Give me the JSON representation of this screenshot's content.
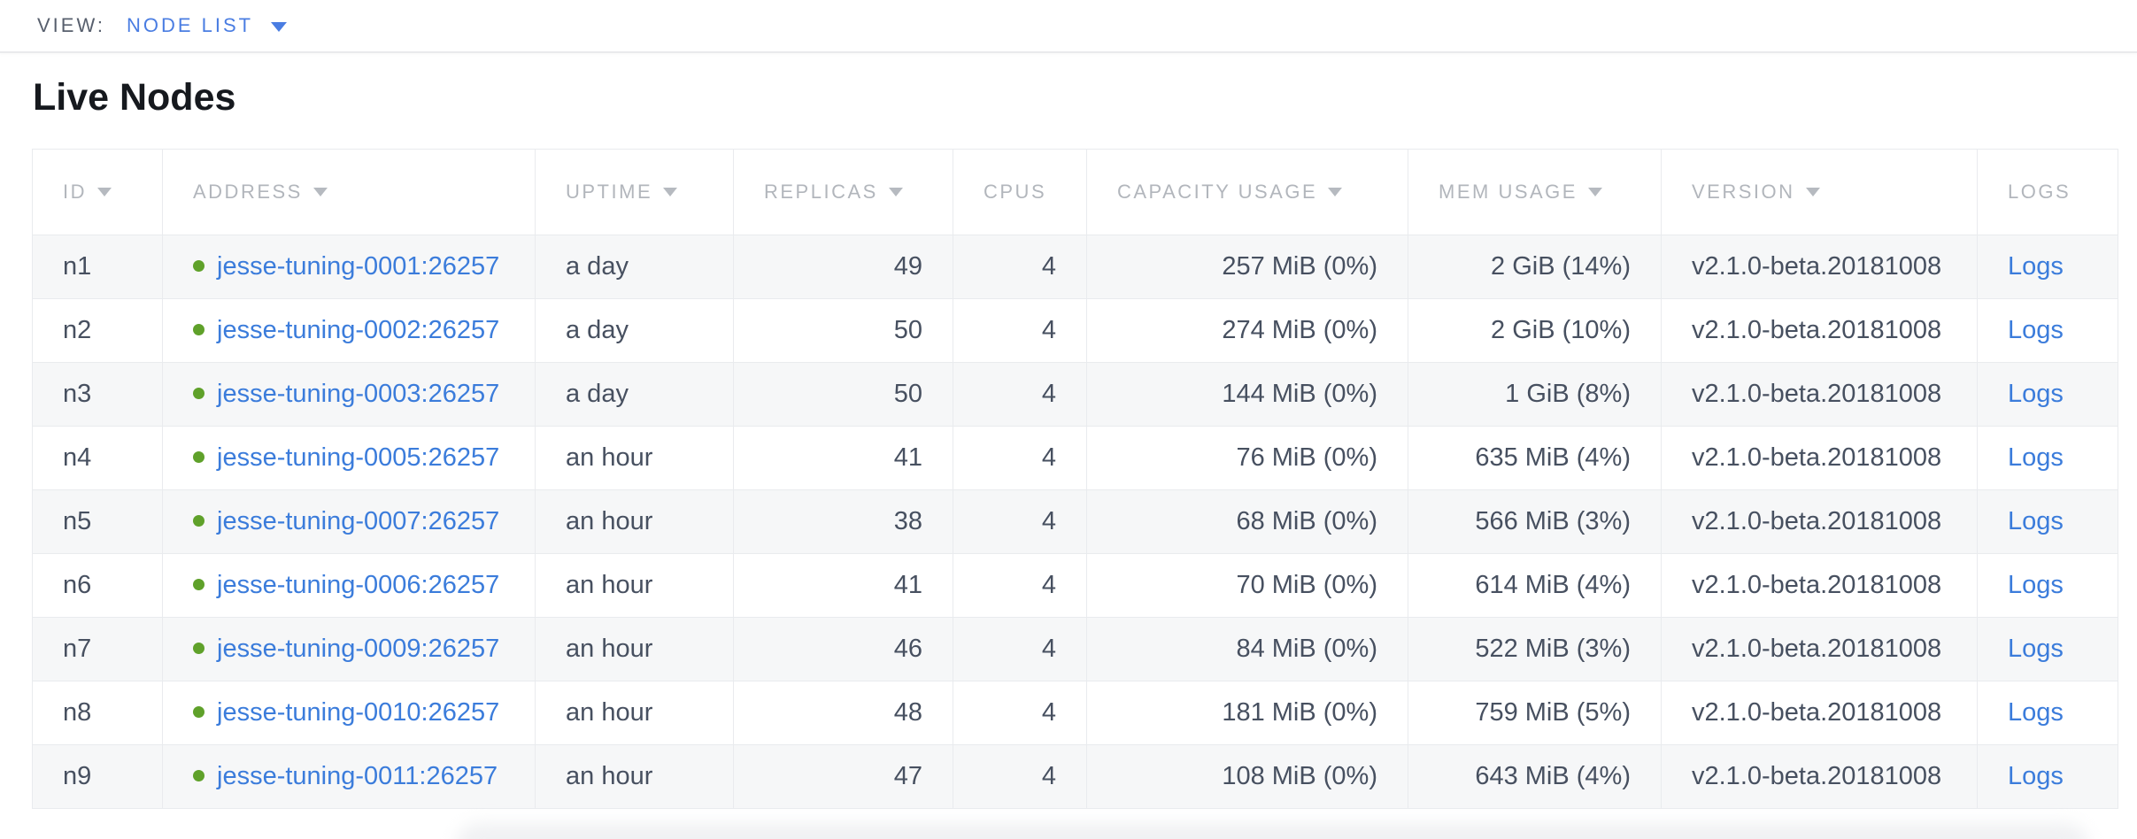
{
  "view_bar": {
    "label": "VIEW:",
    "selected": "NODE LIST"
  },
  "page": {
    "title": "Live Nodes"
  },
  "table": {
    "columns": [
      {
        "key": "id",
        "label": "ID",
        "sortable": true,
        "align": "left"
      },
      {
        "key": "address",
        "label": "ADDRESS",
        "sortable": true,
        "align": "left"
      },
      {
        "key": "uptime",
        "label": "UPTIME",
        "sortable": true,
        "align": "left"
      },
      {
        "key": "replicas",
        "label": "REPLICAS",
        "sortable": true,
        "align": "right"
      },
      {
        "key": "cpus",
        "label": "CPUS",
        "sortable": false,
        "align": "right"
      },
      {
        "key": "capacity_usage",
        "label": "CAPACITY USAGE",
        "sortable": true,
        "align": "right"
      },
      {
        "key": "mem_usage",
        "label": "MEM USAGE",
        "sortable": true,
        "align": "right"
      },
      {
        "key": "version",
        "label": "VERSION",
        "sortable": true,
        "align": "left"
      },
      {
        "key": "logs",
        "label": "LOGS",
        "sortable": false,
        "align": "left"
      }
    ],
    "rows": [
      {
        "id": "n1",
        "status": "healthy",
        "address": "jesse-tuning-0001:26257",
        "uptime": "a day",
        "replicas": "49",
        "cpus": "4",
        "capacity_usage": "257 MiB (0%)",
        "mem_usage": "2 GiB (14%)",
        "version": "v2.1.0-beta.20181008",
        "logs": "Logs"
      },
      {
        "id": "n2",
        "status": "healthy",
        "address": "jesse-tuning-0002:26257",
        "uptime": "a day",
        "replicas": "50",
        "cpus": "4",
        "capacity_usage": "274 MiB (0%)",
        "mem_usage": "2 GiB (10%)",
        "version": "v2.1.0-beta.20181008",
        "logs": "Logs"
      },
      {
        "id": "n3",
        "status": "healthy",
        "address": "jesse-tuning-0003:26257",
        "uptime": "a day",
        "replicas": "50",
        "cpus": "4",
        "capacity_usage": "144 MiB (0%)",
        "mem_usage": "1 GiB (8%)",
        "version": "v2.1.0-beta.20181008",
        "logs": "Logs"
      },
      {
        "id": "n4",
        "status": "healthy",
        "address": "jesse-tuning-0005:26257",
        "uptime": "an hour",
        "replicas": "41",
        "cpus": "4",
        "capacity_usage": "76 MiB (0%)",
        "mem_usage": "635 MiB (4%)",
        "version": "v2.1.0-beta.20181008",
        "logs": "Logs"
      },
      {
        "id": "n5",
        "status": "healthy",
        "address": "jesse-tuning-0007:26257",
        "uptime": "an hour",
        "replicas": "38",
        "cpus": "4",
        "capacity_usage": "68 MiB (0%)",
        "mem_usage": "566 MiB (3%)",
        "version": "v2.1.0-beta.20181008",
        "logs": "Logs"
      },
      {
        "id": "n6",
        "status": "healthy",
        "address": "jesse-tuning-0006:26257",
        "uptime": "an hour",
        "replicas": "41",
        "cpus": "4",
        "capacity_usage": "70 MiB (0%)",
        "mem_usage": "614 MiB (4%)",
        "version": "v2.1.0-beta.20181008",
        "logs": "Logs"
      },
      {
        "id": "n7",
        "status": "healthy",
        "address": "jesse-tuning-0009:26257",
        "uptime": "an hour",
        "replicas": "46",
        "cpus": "4",
        "capacity_usage": "84 MiB (0%)",
        "mem_usage": "522 MiB (3%)",
        "version": "v2.1.0-beta.20181008",
        "logs": "Logs"
      },
      {
        "id": "n8",
        "status": "healthy",
        "address": "jesse-tuning-0010:26257",
        "uptime": "an hour",
        "replicas": "48",
        "cpus": "4",
        "capacity_usage": "181 MiB (0%)",
        "mem_usage": "759 MiB (5%)",
        "version": "v2.1.0-beta.20181008",
        "logs": "Logs"
      },
      {
        "id": "n9",
        "status": "healthy",
        "address": "jesse-tuning-0011:26257",
        "uptime": "an hour",
        "replicas": "47",
        "cpus": "4",
        "capacity_usage": "108 MiB (0%)",
        "mem_usage": "643 MiB (4%)",
        "version": "v2.1.0-beta.20181008",
        "logs": "Logs"
      }
    ]
  },
  "colors": {
    "accent_blue": "#4a7de2",
    "link_blue": "#3b7cdb",
    "health_green": "#5fa12a",
    "header_text": "#b2b6bc",
    "cell_text": "#475060",
    "row_stripe": "#f6f7f8",
    "border": "#e9ebee"
  }
}
